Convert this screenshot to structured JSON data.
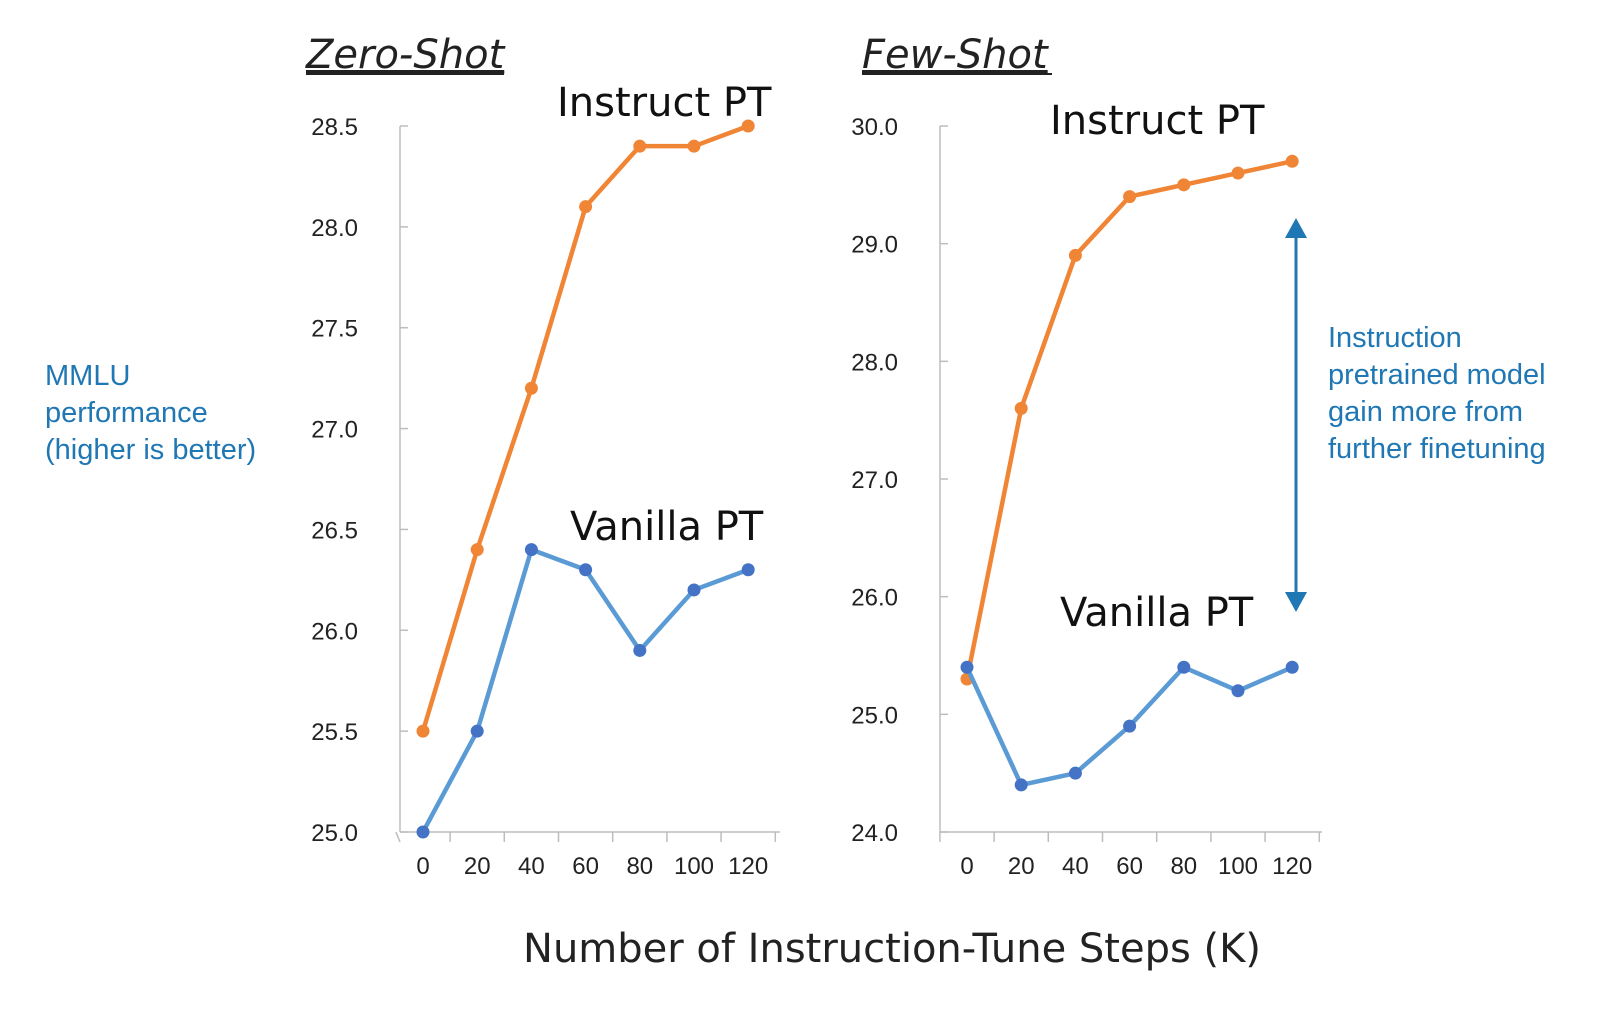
{
  "figure": {
    "xlabel": "Number of Instruction-Tune Steps (K)",
    "ylabel_lines": [
      "MMLU",
      "performance",
      "(higher is better)"
    ],
    "annotation_lines": [
      "Instruction",
      "pretrained model",
      "gain more from",
      "further finetuning"
    ],
    "colors": {
      "instruct": "#f08535",
      "vanilla": "#5b9bd5",
      "vanilla_marker": "#4472c4",
      "note": "#1f77b4"
    }
  },
  "chart_data": [
    {
      "type": "line",
      "title": "Zero-Shot",
      "x": [
        0,
        20,
        40,
        60,
        80,
        100,
        120
      ],
      "xticks": [
        "0",
        "20",
        "40",
        "60",
        "80",
        "100",
        "120"
      ],
      "yticks": [
        "25.0",
        "25.5",
        "26.0",
        "26.5",
        "27.0",
        "27.5",
        "28.0",
        "28.5"
      ],
      "ylim": [
        25.0,
        28.5
      ],
      "series": [
        {
          "name": "Instruct PT",
          "values": [
            25.5,
            26.4,
            27.2,
            28.1,
            28.4,
            28.4,
            28.5
          ]
        },
        {
          "name": "Vanilla PT",
          "values": [
            25.0,
            25.5,
            26.4,
            26.3,
            25.9,
            26.2,
            26.3
          ]
        }
      ]
    },
    {
      "type": "line",
      "title": "Few-Shot",
      "x": [
        0,
        20,
        40,
        60,
        80,
        100,
        120
      ],
      "xticks": [
        "0",
        "20",
        "40",
        "60",
        "80",
        "100",
        "120"
      ],
      "yticks": [
        "24.0",
        "25.0",
        "26.0",
        "27.0",
        "28.0",
        "29.0",
        "30.0"
      ],
      "ylim": [
        24.0,
        30.0
      ],
      "series": [
        {
          "name": "Instruct PT",
          "values": [
            25.3,
            27.6,
            28.9,
            29.4,
            29.5,
            29.6,
            29.7
          ]
        },
        {
          "name": "Vanilla PT",
          "values": [
            25.4,
            24.4,
            24.5,
            24.9,
            25.4,
            25.2,
            25.4
          ]
        }
      ]
    }
  ]
}
